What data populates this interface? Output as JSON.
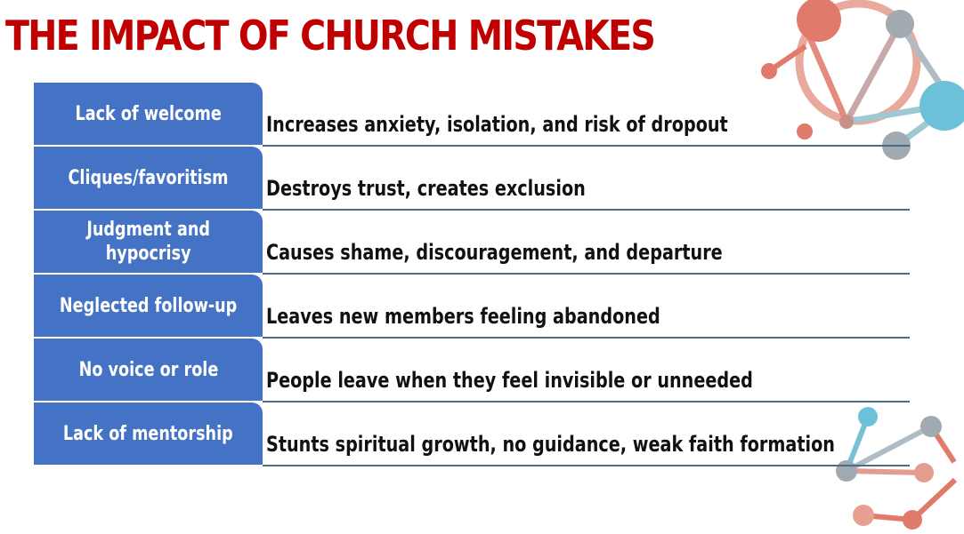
{
  "title": "THE IMPACT OF CHURCH MISTAKES",
  "colors": {
    "title": "#c00000",
    "label_fill": "#4472c4",
    "rule": "#4a6b8c",
    "deco_salmon": "#e07a6a",
    "deco_teal": "#6cc0d8",
    "deco_gray": "#a0aab0"
  },
  "rows": [
    {
      "label": "Lack of welcome",
      "description": "Increases anxiety, isolation, and risk of dropout"
    },
    {
      "label": "Cliques/favoritism",
      "description": "Destroys trust, creates exclusion"
    },
    {
      "label": "Judgment and\nhypocrisy",
      "description": "Causes shame, discouragement, and departure"
    },
    {
      "label": "Neglected follow-up",
      "description": "Leaves new members feeling abandoned"
    },
    {
      "label": "No voice or role",
      "description": "People leave when they feel invisible or unneeded"
    },
    {
      "label": "Lack of mentorship",
      "description": "Stunts spiritual growth, no guidance, weak faith formation"
    }
  ],
  "decorations": [
    "molecule-network-top-right",
    "molecule-network-bottom-right"
  ]
}
